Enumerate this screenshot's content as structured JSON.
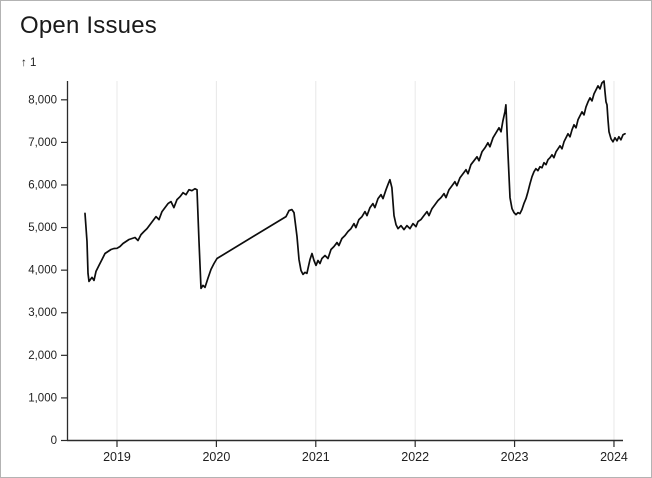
{
  "chart": {
    "title": "Open Issues",
    "y_axis_annotation": "↑ 1"
  },
  "chart_data": {
    "type": "line",
    "title": "Open Issues",
    "ylabel": "1",
    "xlabel": "",
    "legend": "none",
    "grid": "vertical gridlines at year ticks",
    "background": "#ffffff",
    "line_color": "#0d0d0d",
    "grid_color": "#e8e8e8",
    "axis_color": "#2b2b2b",
    "x_domain": [
      2018.497,
      2024.121
    ],
    "y_domain": [
      0,
      8430
    ],
    "x_ticks": [
      2019,
      2020,
      2021,
      2022,
      2023,
      2024
    ],
    "y_ticks": [
      0,
      1000,
      2000,
      3000,
      4000,
      5000,
      6000,
      7000,
      8000
    ],
    "series": [
      {
        "name": "open issues",
        "points": [
          [
            2018.678,
            5320
          ],
          [
            2018.698,
            4660
          ],
          [
            2018.708,
            3911
          ],
          [
            2018.718,
            3724
          ],
          [
            2018.749,
            3817
          ],
          [
            2018.769,
            3747
          ],
          [
            2018.789,
            3958
          ],
          [
            2018.819,
            4099
          ],
          [
            2018.849,
            4239
          ],
          [
            2018.879,
            4380
          ],
          [
            2018.909,
            4426
          ],
          [
            2018.94,
            4473
          ],
          [
            2018.97,
            4497
          ],
          [
            2019.0,
            4502
          ],
          [
            2019.03,
            4543
          ],
          [
            2019.06,
            4614
          ],
          [
            2019.091,
            4660
          ],
          [
            2019.121,
            4707
          ],
          [
            2019.151,
            4731
          ],
          [
            2019.181,
            4754
          ],
          [
            2019.211,
            4684
          ],
          [
            2019.241,
            4824
          ],
          [
            2019.272,
            4895
          ],
          [
            2019.302,
            4965
          ],
          [
            2019.332,
            5059
          ],
          [
            2019.362,
            5152
          ],
          [
            2019.392,
            5246
          ],
          [
            2019.423,
            5176
          ],
          [
            2019.453,
            5363
          ],
          [
            2019.483,
            5457
          ],
          [
            2019.513,
            5551
          ],
          [
            2019.543,
            5597
          ],
          [
            2019.573,
            5457
          ],
          [
            2019.604,
            5644
          ],
          [
            2019.634,
            5714
          ],
          [
            2019.664,
            5808
          ],
          [
            2019.694,
            5761
          ],
          [
            2019.724,
            5878
          ],
          [
            2019.754,
            5855
          ],
          [
            2019.785,
            5902
          ],
          [
            2019.805,
            5878
          ],
          [
            2019.825,
            4660
          ],
          [
            2019.845,
            3560
          ],
          [
            2019.865,
            3630
          ],
          [
            2019.885,
            3583
          ],
          [
            2019.915,
            3794
          ],
          [
            2019.946,
            4005
          ],
          [
            2019.976,
            4145
          ],
          [
            2020.006,
            4262
          ],
          [
            2020.7,
            5246
          ],
          [
            2020.73,
            5387
          ],
          [
            2020.76,
            5410
          ],
          [
            2020.781,
            5340
          ],
          [
            2020.811,
            4778
          ],
          [
            2020.831,
            4239
          ],
          [
            2020.851,
            3981
          ],
          [
            2020.871,
            3888
          ],
          [
            2020.891,
            3935
          ],
          [
            2020.911,
            3911
          ],
          [
            2020.942,
            4239
          ],
          [
            2020.962,
            4380
          ],
          [
            2020.982,
            4216
          ],
          [
            2021.002,
            4099
          ],
          [
            2021.022,
            4216
          ],
          [
            2021.042,
            4145
          ],
          [
            2021.062,
            4262
          ],
          [
            2021.093,
            4333
          ],
          [
            2021.123,
            4262
          ],
          [
            2021.153,
            4473
          ],
          [
            2021.183,
            4543
          ],
          [
            2021.213,
            4637
          ],
          [
            2021.233,
            4567
          ],
          [
            2021.263,
            4731
          ],
          [
            2021.294,
            4801
          ],
          [
            2021.324,
            4895
          ],
          [
            2021.354,
            4965
          ],
          [
            2021.384,
            5082
          ],
          [
            2021.404,
            4988
          ],
          [
            2021.434,
            5176
          ],
          [
            2021.465,
            5246
          ],
          [
            2021.495,
            5363
          ],
          [
            2021.515,
            5270
          ],
          [
            2021.545,
            5457
          ],
          [
            2021.575,
            5551
          ],
          [
            2021.595,
            5457
          ],
          [
            2021.626,
            5668
          ],
          [
            2021.656,
            5761
          ],
          [
            2021.676,
            5668
          ],
          [
            2021.706,
            5878
          ],
          [
            2021.726,
            5996
          ],
          [
            2021.746,
            6113
          ],
          [
            2021.766,
            5925
          ],
          [
            2021.787,
            5270
          ],
          [
            2021.807,
            5059
          ],
          [
            2021.827,
            4965
          ],
          [
            2021.857,
            5035
          ],
          [
            2021.887,
            4941
          ],
          [
            2021.917,
            5035
          ],
          [
            2021.948,
            4965
          ],
          [
            2021.978,
            5082
          ],
          [
            2022.008,
            5012
          ],
          [
            2022.028,
            5129
          ],
          [
            2022.058,
            5176
          ],
          [
            2022.088,
            5270
          ],
          [
            2022.119,
            5363
          ],
          [
            2022.139,
            5270
          ],
          [
            2022.169,
            5434
          ],
          [
            2022.199,
            5527
          ],
          [
            2022.229,
            5621
          ],
          [
            2022.26,
            5691
          ],
          [
            2022.29,
            5785
          ],
          [
            2022.31,
            5691
          ],
          [
            2022.34,
            5878
          ],
          [
            2022.37,
            5972
          ],
          [
            2022.4,
            6066
          ],
          [
            2022.42,
            5972
          ],
          [
            2022.451,
            6159
          ],
          [
            2022.481,
            6253
          ],
          [
            2022.511,
            6347
          ],
          [
            2022.531,
            6253
          ],
          [
            2022.561,
            6464
          ],
          [
            2022.592,
            6558
          ],
          [
            2022.622,
            6651
          ],
          [
            2022.642,
            6558
          ],
          [
            2022.672,
            6768
          ],
          [
            2022.702,
            6862
          ],
          [
            2022.732,
            6979
          ],
          [
            2022.752,
            6885
          ],
          [
            2022.783,
            7096
          ],
          [
            2022.813,
            7213
          ],
          [
            2022.843,
            7330
          ],
          [
            2022.863,
            7237
          ],
          [
            2022.883,
            7494
          ],
          [
            2022.903,
            7705
          ],
          [
            2022.913,
            7869
          ],
          [
            2022.933,
            6768
          ],
          [
            2022.954,
            5691
          ],
          [
            2022.974,
            5434
          ],
          [
            2022.994,
            5340
          ],
          [
            2023.014,
            5293
          ],
          [
            2023.034,
            5340
          ],
          [
            2023.054,
            5317
          ],
          [
            2023.074,
            5410
          ],
          [
            2023.094,
            5551
          ],
          [
            2023.115,
            5668
          ],
          [
            2023.135,
            5832
          ],
          [
            2023.155,
            6019
          ],
          [
            2023.175,
            6183
          ],
          [
            2023.195,
            6300
          ],
          [
            2023.215,
            6370
          ],
          [
            2023.235,
            6323
          ],
          [
            2023.256,
            6417
          ],
          [
            2023.276,
            6394
          ],
          [
            2023.296,
            6511
          ],
          [
            2023.316,
            6464
          ],
          [
            2023.336,
            6581
          ],
          [
            2023.356,
            6628
          ],
          [
            2023.376,
            6698
          ],
          [
            2023.396,
            6628
          ],
          [
            2023.417,
            6768
          ],
          [
            2023.437,
            6839
          ],
          [
            2023.457,
            6909
          ],
          [
            2023.477,
            6839
          ],
          [
            2023.497,
            7003
          ],
          [
            2023.517,
            7096
          ],
          [
            2023.537,
            7190
          ],
          [
            2023.558,
            7120
          ],
          [
            2023.578,
            7284
          ],
          [
            2023.598,
            7401
          ],
          [
            2023.618,
            7330
          ],
          [
            2023.638,
            7518
          ],
          [
            2023.658,
            7612
          ],
          [
            2023.678,
            7705
          ],
          [
            2023.698,
            7635
          ],
          [
            2023.719,
            7822
          ],
          [
            2023.739,
            7939
          ],
          [
            2023.759,
            8033
          ],
          [
            2023.779,
            7963
          ],
          [
            2023.799,
            8127
          ],
          [
            2023.819,
            8220
          ],
          [
            2023.839,
            8314
          ],
          [
            2023.859,
            8244
          ],
          [
            2023.879,
            8384
          ],
          [
            2023.9,
            8431
          ],
          [
            2023.91,
            8173
          ],
          [
            2023.92,
            7939
          ],
          [
            2023.93,
            7869
          ],
          [
            2023.94,
            7518
          ],
          [
            2023.95,
            7237
          ],
          [
            2023.97,
            7073
          ],
          [
            2023.99,
            7003
          ],
          [
            2024.01,
            7096
          ],
          [
            2024.03,
            7026
          ],
          [
            2024.05,
            7120
          ],
          [
            2024.07,
            7050
          ],
          [
            2024.091,
            7167
          ],
          [
            2024.111,
            7190
          ]
        ]
      }
    ]
  }
}
